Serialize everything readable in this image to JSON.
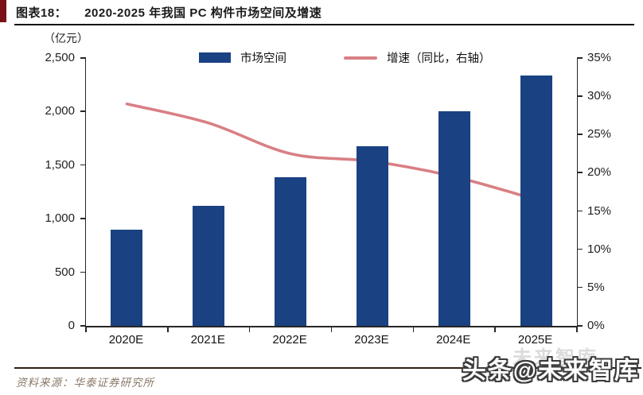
{
  "header": {
    "caption_label": "图表18：",
    "caption_title": "2020-2025 年我国 PC 构件市场空间及增速"
  },
  "footer": {
    "source": "资料来源：华泰证券研究所",
    "watermark": "头条@未来智库",
    "watermark_ghost": "未来智库"
  },
  "colors": {
    "bar": "#1a4182",
    "line": "#d97f84",
    "accent_maroon": "#7a1116",
    "axis": "#262626"
  },
  "chart_data": {
    "type": "bar",
    "subtype": "bar+line-combo",
    "title": "2020-2025 年我国 PC 构件市场空间及增速",
    "unit_label": "（亿元）",
    "categories": [
      "2020E",
      "2021E",
      "2022E",
      "2023E",
      "2024E",
      "2025E"
    ],
    "series": [
      {
        "name": "市场空间",
        "type": "bar",
        "axis": "left",
        "color": "#1a4182",
        "values": [
          900,
          1120,
          1390,
          1680,
          2000,
          2340
        ]
      },
      {
        "name": "增速（同比，右轴）",
        "type": "line",
        "axis": "right",
        "color": "#d97f84",
        "values": [
          29,
          26.5,
          22.5,
          21.5,
          19.5,
          16.5
        ]
      }
    ],
    "left_axis": {
      "min": 0,
      "max": 2500,
      "step": 500,
      "tick_labels": [
        "2,500",
        "2,000",
        "1,500",
        "1,000",
        "500",
        "0"
      ]
    },
    "right_axis": {
      "min": 0,
      "max": 35,
      "step": 5,
      "tick_labels": [
        "35%",
        "30%",
        "25%",
        "20%",
        "15%",
        "10%",
        "5%",
        "0%"
      ]
    },
    "legend_position": "top-center",
    "grid": false,
    "xlabel": "",
    "ylabel_left": "亿元",
    "ylabel_right": "%"
  }
}
